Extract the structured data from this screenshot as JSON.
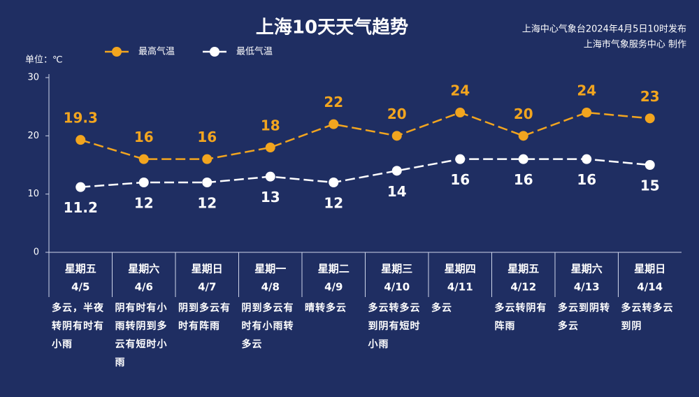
{
  "chart_data": {
    "type": "line",
    "title": "上海10天天气趋势",
    "source": [
      "上海中心气象台2024年4月5日10时发布",
      "上海市气象服务中心 制作"
    ],
    "unit_label": "单位：℃",
    "weekdays": [
      "星期五",
      "星期六",
      "星期日",
      "星期一",
      "星期二",
      "星期三",
      "星期四",
      "星期五",
      "星期六",
      "星期日"
    ],
    "categories": [
      "4/5",
      "4/6",
      "4/7",
      "4/8",
      "4/9",
      "4/10",
      "4/11",
      "4/12",
      "4/13",
      "4/14"
    ],
    "descriptions": [
      "多云，半夜转阴有时有小雨",
      "阴有时有小雨转阴到多云有短时小雨",
      "阴到多云有时有阵雨",
      "阴到多云有时有小雨转多云",
      "晴转多云",
      "多云转多云到阴有短时小雨",
      "多云",
      "多云转阴有阵雨",
      "多云到阴转多云",
      "多云转多云到阴"
    ],
    "series": [
      {
        "name": "最高气温",
        "color": "#f2a51f",
        "values": [
          19.3,
          16,
          16,
          18,
          22,
          20,
          24,
          20,
          24,
          23
        ]
      },
      {
        "name": "最低气温",
        "color": "#ffffff",
        "values": [
          11.2,
          12,
          12,
          13,
          12,
          14,
          16,
          16,
          16,
          15
        ]
      }
    ],
    "ylim": [
      0,
      30
    ],
    "yticks": [
      0,
      10,
      20,
      30
    ]
  }
}
